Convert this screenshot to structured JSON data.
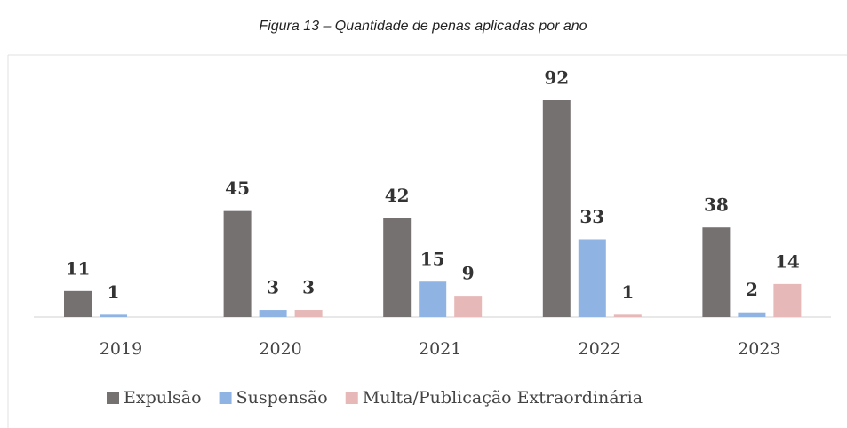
{
  "chart_data": {
    "type": "bar",
    "title": "Figura 13 – Quantidade de penas aplicadas por ano",
    "categories": [
      "2019",
      "2020",
      "2021",
      "2022",
      "2023"
    ],
    "series": [
      {
        "name": "Expulsão",
        "color": "#767171",
        "values": [
          11,
          45,
          42,
          92,
          38
        ]
      },
      {
        "name": "Suspensão",
        "color": "#8fb4e3",
        "values": [
          1,
          3,
          15,
          33,
          2
        ]
      },
      {
        "name": "Multa/Publicação Extraordinária",
        "color": "#e6b8b7",
        "values": [
          null,
          3,
          9,
          1,
          14
        ]
      }
    ],
    "legend": "bottom"
  }
}
